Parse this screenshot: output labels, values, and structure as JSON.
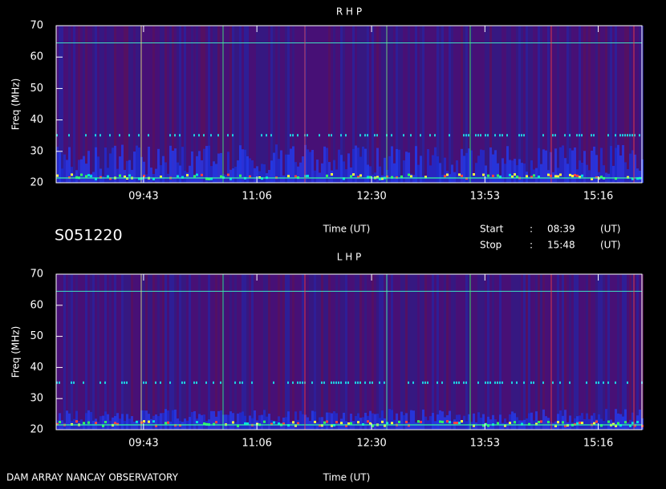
{
  "header": {
    "id": "S051220",
    "start_label": "Start",
    "start_sep": ":",
    "start": "08:39",
    "start_unit": "(UT)",
    "stop_label": "Stop",
    "stop_sep": ":",
    "stop": "15:48",
    "stop_unit": "(UT)",
    "footer": "DAM ARRAY  NANCAY OBSERVATORY"
  },
  "chart_data": [
    {
      "type": "spectrogram",
      "title": "R H P",
      "xlabel": "Time (UT)",
      "ylabel": "Freq (MHz)",
      "xlim": [
        "08:39",
        "15:48"
      ],
      "xticks": [
        "09:43",
        "11:06",
        "12:30",
        "13:53",
        "15:16"
      ],
      "ylim": [
        20,
        70
      ],
      "yticks": [
        20,
        30,
        40,
        50,
        60,
        70
      ]
    },
    {
      "type": "spectrogram",
      "title": "L H P",
      "xlabel": "Time (UT)",
      "ylabel": "Freq (MHz)",
      "xlim": [
        "08:39",
        "15:48"
      ],
      "xticks": [
        "09:43",
        "11:06",
        "12:30",
        "13:53",
        "15:16"
      ],
      "ylim": [
        20,
        70
      ],
      "yticks": [
        20,
        30,
        40,
        50,
        60,
        70
      ]
    }
  ]
}
